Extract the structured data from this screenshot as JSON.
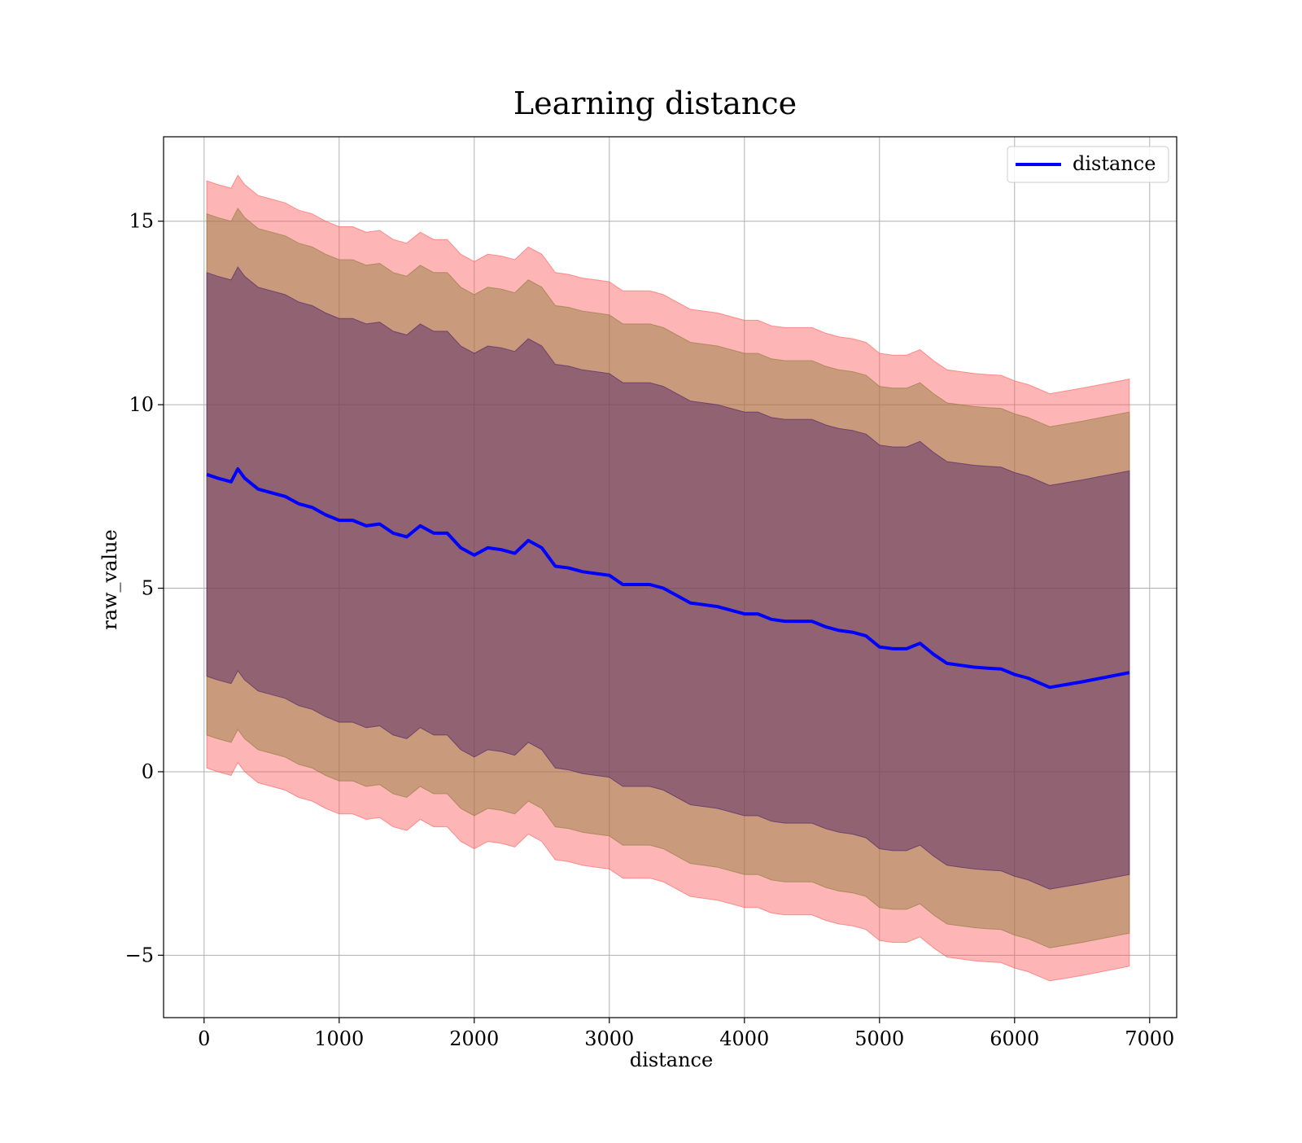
{
  "chart_data": {
    "type": "area",
    "title": "Learning distance",
    "xlabel": "distance",
    "ylabel": "raw_value",
    "xlim": [
      -300,
      7200
    ],
    "ylim": [
      -6.7,
      17.3
    ],
    "xticks": [
      0,
      1000,
      2000,
      3000,
      4000,
      5000,
      6000,
      7000
    ],
    "xtick_labels": [
      "0",
      "1000",
      "2000",
      "3000",
      "4000",
      "5000",
      "6000",
      "7000"
    ],
    "yticks": [
      -5,
      0,
      5,
      10,
      15
    ],
    "ytick_labels": [
      "−5",
      "0",
      "5",
      "10",
      "15"
    ],
    "grid": true,
    "legend_position": "top-right",
    "series": [
      {
        "name": "distance",
        "color": "#0000ff",
        "x": [
          20,
          100,
          200,
          250,
          300,
          400,
          500,
          600,
          700,
          800,
          900,
          1000,
          1100,
          1200,
          1300,
          1400,
          1500,
          1600,
          1700,
          1800,
          1900,
          2000,
          2100,
          2200,
          2300,
          2400,
          2500,
          2600,
          2700,
          2800,
          2900,
          3000,
          3100,
          3200,
          3300,
          3400,
          3500,
          3600,
          3700,
          3800,
          3900,
          4000,
          4100,
          4200,
          4300,
          4400,
          4500,
          4600,
          4700,
          4800,
          4900,
          5000,
          5100,
          5200,
          5300,
          5400,
          5500,
          5600,
          5700,
          5800,
          5900,
          6000,
          6100,
          6260,
          6500,
          6850
        ],
        "values": [
          8.1,
          8.0,
          7.9,
          8.25,
          8.0,
          7.7,
          7.6,
          7.5,
          7.3,
          7.2,
          7.0,
          6.85,
          6.85,
          6.7,
          6.75,
          6.5,
          6.4,
          6.7,
          6.5,
          6.5,
          6.1,
          5.9,
          6.1,
          6.05,
          5.95,
          6.3,
          6.1,
          5.6,
          5.55,
          5.45,
          5.4,
          5.35,
          5.1,
          5.1,
          5.1,
          5.0,
          4.8,
          4.6,
          4.55,
          4.5,
          4.4,
          4.3,
          4.3,
          4.15,
          4.1,
          4.1,
          4.1,
          3.95,
          3.85,
          3.8,
          3.7,
          3.4,
          3.35,
          3.35,
          3.5,
          3.2,
          2.95,
          2.9,
          2.85,
          2.82,
          2.8,
          2.65,
          2.55,
          2.3,
          2.45,
          2.7
        ]
      }
    ],
    "bands": [
      {
        "name": "",
        "color": "#fd5a5a",
        "opacity": 0.45,
        "offset": 8.0
      },
      {
        "name": "",
        "color": "#8c7a3a",
        "opacity": 0.45,
        "offset": 7.1
      },
      {
        "name": "",
        "color": "#4b1f66",
        "opacity": 0.45,
        "offset": 5.5
      }
    ]
  }
}
